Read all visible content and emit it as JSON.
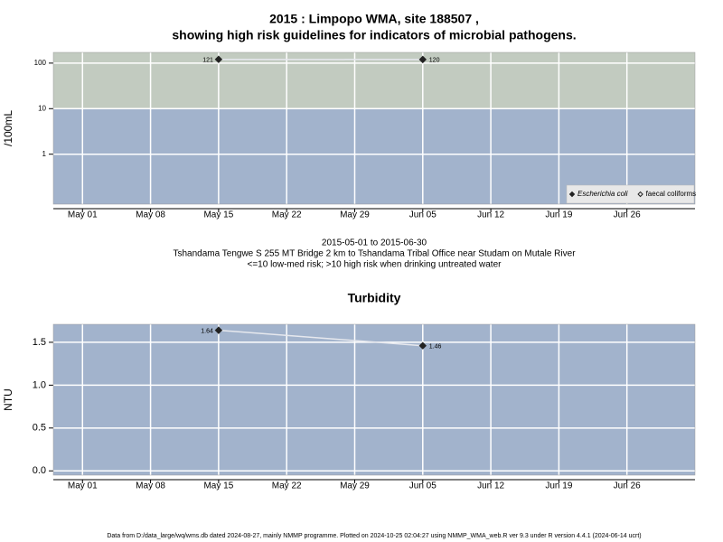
{
  "chart_data": [
    {
      "type": "line",
      "title": [
        "2015 : Limpopo WMA, site 188507 ,",
        "showing high risk guidelines for indicators of microbial pathogens."
      ],
      "caption": [
        "2015-05-01 to 2015-06-30",
        "Tshandama Tengwe S 255 MT Bridge 2 km to Tshandama Tribal Office near Studam on Mutale River",
        "<=10 low-med risk; >10 high risk when drinking untreated water"
      ],
      "y_label": "/100mL",
      "log_y": true,
      "x": [
        "2015-05-15",
        "2015-06-05"
      ],
      "series": [
        {
          "name": "Escherichia coli",
          "color": "#222222",
          "marker": "filled",
          "values": [
            121,
            120
          ]
        },
        {
          "name": "faecal coliforms",
          "color": "#222222",
          "marker": "open",
          "values": [
            null,
            null
          ]
        }
      ],
      "line_color": "#e6e8ee",
      "xlim": [
        "2015-04-28",
        "2015-07-03"
      ],
      "xticks": [
        {
          "value": "2015-05-01",
          "label": "May 01"
        },
        {
          "value": "2015-05-08",
          "label": "May 08"
        },
        {
          "value": "2015-05-15",
          "label": "May 15"
        },
        {
          "value": "2015-05-22",
          "label": "May 22"
        },
        {
          "value": "2015-05-29",
          "label": "May 29"
        },
        {
          "value": "2015-06-05",
          "label": "Jun 05"
        },
        {
          "value": "2015-06-12",
          "label": "Jun 12"
        },
        {
          "value": "2015-06-19",
          "label": "Jun 19"
        },
        {
          "value": "2015-06-26",
          "label": "Jun 26"
        }
      ],
      "ylim": [
        0.08,
        172
      ],
      "yticks": [
        1,
        10,
        100
      ],
      "threshold": 10,
      "band_colors": [
        "#a2b3cc",
        "#c2cbc0"
      ],
      "grid": true,
      "legend": "bottom right"
    },
    {
      "type": "line",
      "title": [
        "Turbidity"
      ],
      "y_label": "NTU",
      "log_y": false,
      "x": [
        "2015-05-15",
        "2015-06-05"
      ],
      "series": [
        {
          "name": "Turbidity",
          "color": "#222222",
          "marker": "filled",
          "values": [
            1.64,
            1.46
          ]
        }
      ],
      "line_color": "#e6e8ee",
      "xlim": [
        "2015-04-28",
        "2015-07-03"
      ],
      "xticks": [
        {
          "value": "2015-05-01",
          "label": "May 01"
        },
        {
          "value": "2015-05-08",
          "label": "May 08"
        },
        {
          "value": "2015-05-15",
          "label": "May 15"
        },
        {
          "value": "2015-05-22",
          "label": "May 22"
        },
        {
          "value": "2015-05-29",
          "label": "May 29"
        },
        {
          "value": "2015-06-05",
          "label": "Jun 05"
        },
        {
          "value": "2015-06-12",
          "label": "Jun 12"
        },
        {
          "value": "2015-06-19",
          "label": "Jun 19"
        },
        {
          "value": "2015-06-26",
          "label": "Jun 26"
        }
      ],
      "ylim": [
        -0.05,
        1.71
      ],
      "yticks": [
        {
          "value": 0,
          "label": "0.0"
        },
        {
          "value": 0.5,
          "label": "0.5"
        },
        {
          "value": 1,
          "label": "1.0"
        },
        {
          "value": 1.5,
          "label": "1.5"
        }
      ],
      "band_colors": [
        "#a2b3cc"
      ],
      "grid": true
    }
  ],
  "footer": "Data from D:/data_large/wq/wms.db dated 2024-08-27, mainly NMMP programme. Plotted on 2024-10-25 02:04:27 using NMMP_WMA_web.R ver 9.3 under R version 4.4.1 (2024-06-14 ucrt)"
}
